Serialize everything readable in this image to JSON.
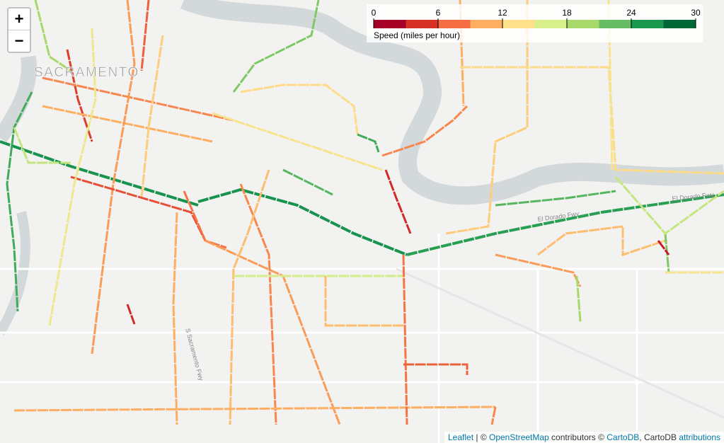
{
  "zoom_controls": {
    "zoom_in": "+",
    "zoom_out": "−"
  },
  "legend": {
    "title": "Speed (miles per hour)",
    "range": [
      0,
      30
    ],
    "ticks": [
      0,
      6,
      12,
      18,
      24,
      30
    ],
    "colors": [
      "#a50026",
      "#d73027",
      "#f46d43",
      "#fdae61",
      "#fee08b",
      "#d9ef8b",
      "#a6d96a",
      "#66bd63",
      "#1a9850",
      "#006837"
    ]
  },
  "map_labels": [
    "SACRAMENTO",
    "El Dorado Fwy",
    "El Dorado Fwy",
    "S Sacramento Fwy"
  ],
  "segments": [
    27,
    27,
    26,
    25,
    22,
    20,
    4,
    8,
    10,
    9,
    6,
    12,
    5,
    7,
    15,
    10,
    9,
    8,
    11,
    10,
    8,
    17,
    11,
    7,
    6,
    14,
    13,
    25,
    3,
    8,
    10,
    12,
    13,
    14,
    24,
    11,
    22,
    2,
    18,
    14,
    9,
    20,
    3,
    24,
    18
  ],
  "attribution": [
    "Leaflet",
    " | © ",
    "OpenStreetMap",
    " contributors © ",
    "CartoDB",
    ", CartoDB ",
    "attributions"
  ]
}
